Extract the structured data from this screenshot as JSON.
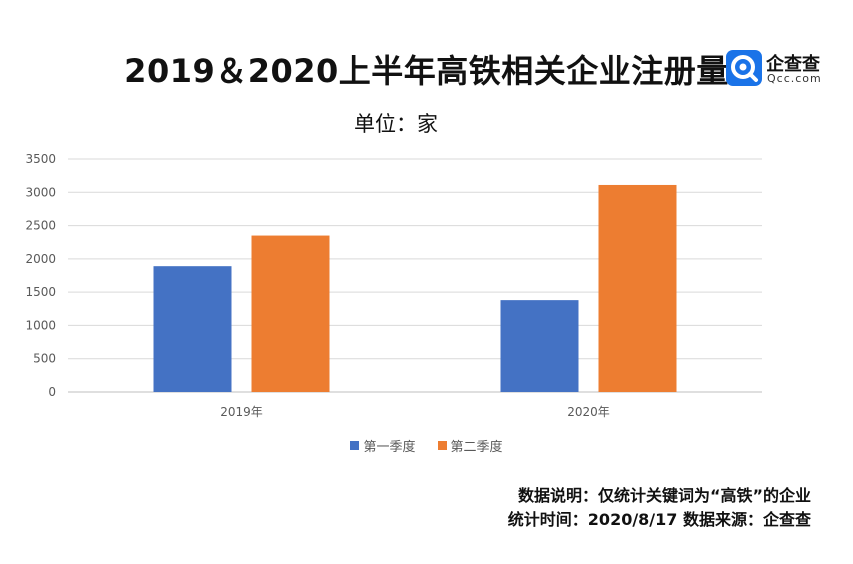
{
  "header": {
    "title": "2019＆2020上半年高铁相关企业注册量",
    "subtitle": "单位：家"
  },
  "logo": {
    "name": "企查查",
    "domain": "Qcc.com",
    "icon": "qcc-logo-icon",
    "color": "#1a73e8"
  },
  "footer": {
    "note": "数据说明：仅统计关键词为“高铁”的企业",
    "source": "统计时间：2020/8/17 数据来源：企查查"
  },
  "chart_data": {
    "type": "bar",
    "categories": [
      "2019年",
      "2020年"
    ],
    "series": [
      {
        "name": "第一季度",
        "values": [
          1890,
          1380
        ],
        "color": "#4472c4"
      },
      {
        "name": "第二季度",
        "values": [
          2350,
          3110
        ],
        "color": "#ed7d31"
      }
    ],
    "ylim": [
      0,
      3500
    ],
    "yticks": [
      0,
      500,
      1000,
      1500,
      2000,
      2500,
      3000,
      3500
    ],
    "grid": true,
    "legend": "bottom"
  }
}
